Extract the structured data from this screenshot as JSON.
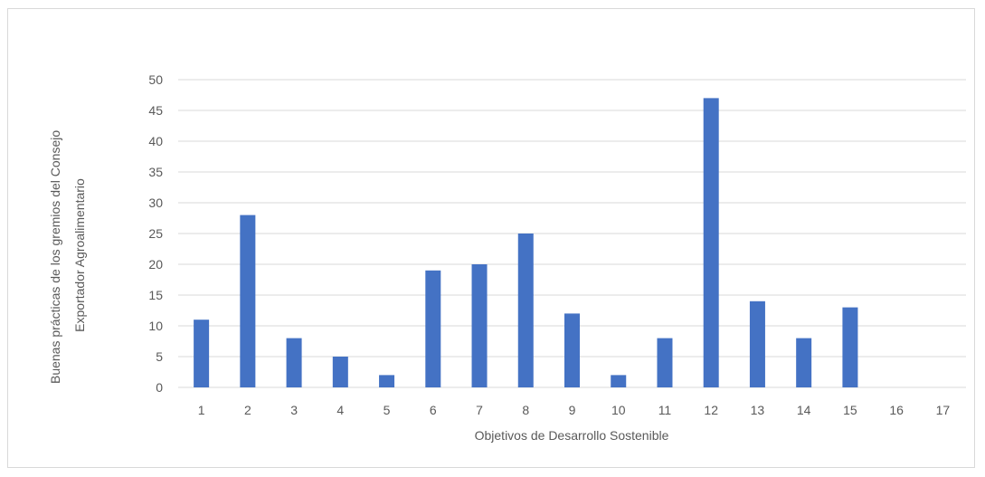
{
  "chart_data": {
    "type": "bar",
    "categories": [
      "1",
      "2",
      "3",
      "4",
      "5",
      "6",
      "7",
      "8",
      "9",
      "10",
      "11",
      "12",
      "13",
      "14",
      "15",
      "16",
      "17"
    ],
    "values": [
      11,
      28,
      8,
      5,
      2,
      19,
      20,
      25,
      12,
      2,
      8,
      47,
      14,
      8,
      13,
      0,
      0
    ],
    "xlabel": "Objetivos de Desarrollo Sostenible",
    "ylabel_lines": [
      "Buenas prácticas de los gremios del Consejo",
      "Exportador  Agroalimentario"
    ],
    "ylim": [
      0,
      50
    ],
    "yticks": [
      "0",
      "5",
      "10",
      "15",
      "20",
      "25",
      "30",
      "35",
      "40",
      "45",
      "50"
    ],
    "grid": true,
    "bar_color": "#4472c4",
    "grid_color": "#d9d9d9"
  }
}
